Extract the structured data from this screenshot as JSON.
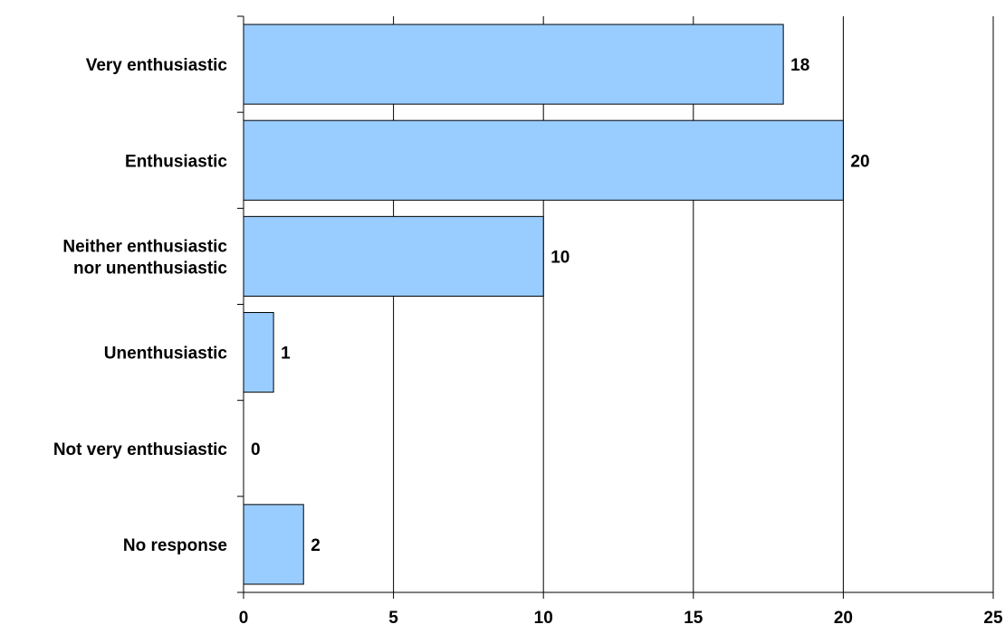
{
  "chart_data": {
    "type": "bar",
    "orientation": "horizontal",
    "title": "",
    "xlabel": "",
    "ylabel": "",
    "categories": [
      "Very enthusiastic",
      "Enthusiastic",
      "Neither enthusiastic nor unenthusiastic",
      "Unenthusiastic",
      "Not very enthusiastic",
      "No response"
    ],
    "category_label_lines": [
      [
        "Very enthusiastic"
      ],
      [
        "Enthusiastic"
      ],
      [
        "Neither enthusiastic",
        "nor unenthusiastic"
      ],
      [
        "Unenthusiastic"
      ],
      [
        "Not very enthusiastic"
      ],
      [
        "No response"
      ]
    ],
    "values": [
      18,
      20,
      10,
      1,
      0,
      2
    ],
    "data_labels": [
      "18",
      "20",
      "10",
      "1",
      "0",
      "2"
    ],
    "xlim": [
      0,
      25
    ],
    "xticks": [
      0,
      5,
      10,
      15,
      20,
      25
    ],
    "xtick_labels": [
      "0",
      "5",
      "10",
      "15",
      "20",
      "25"
    ],
    "grid": "vertical",
    "legend": "none",
    "colors": {
      "bar_fill": "#99ccff",
      "bar_stroke": "#000000",
      "grid": "#000000",
      "axis": "#000000"
    }
  }
}
